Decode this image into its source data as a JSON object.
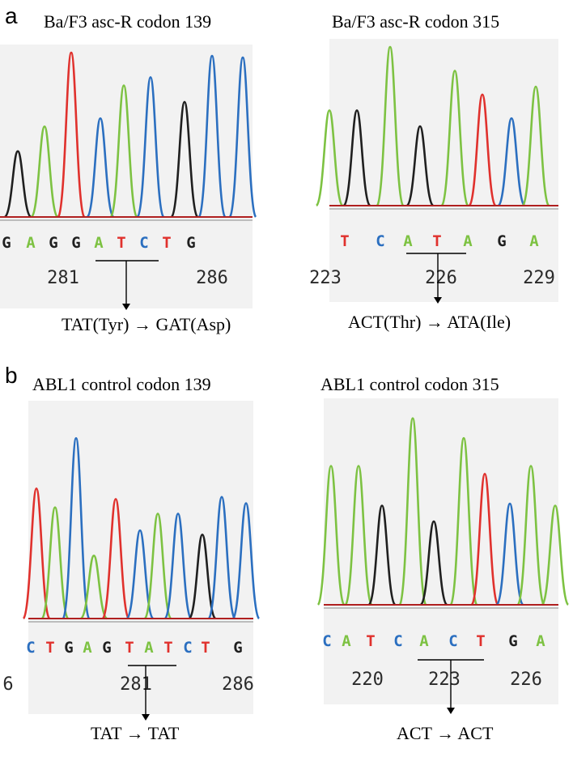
{
  "colors": {
    "A": "#7dc242",
    "C": "#2b6fc0",
    "G": "#1f1f1f",
    "T": "#e0312d",
    "baseline": "#b02020"
  },
  "panels": [
    {
      "letter": "a",
      "left": {
        "title": "Ba/F3 asc-R codon 139",
        "bases": [
          "G",
          "A",
          "G",
          "G",
          "A",
          "T",
          "C",
          "T",
          "G"
        ],
        "positions": [
          "281",
          "286"
        ],
        "mutation": {
          "from": "TAT(Tyr)",
          "arrow": "→",
          "to": "GAT(Asp)"
        }
      },
      "right": {
        "title": "Ba/F3 asc-R codon 315",
        "bases": [
          "T",
          "C",
          "A",
          "T",
          "A",
          "G",
          "A"
        ],
        "positions": [
          "223",
          "226",
          "229"
        ],
        "mutation": {
          "from": "ACT(Thr)",
          "arrow": "→",
          "to": "ATA(Ile)"
        }
      }
    },
    {
      "letter": "b",
      "left": {
        "title": "ABL1 control codon 139",
        "bases": [
          "C",
          "T",
          "G",
          "A",
          "G",
          "T",
          "A",
          "T",
          "C",
          "T",
          "G"
        ],
        "positions": [
          "6",
          "281",
          "286"
        ],
        "mutation": {
          "from": "TAT",
          "arrow": "→",
          "to": "TAT"
        }
      },
      "right": {
        "title": "ABL1 control codon 315",
        "bases": [
          "C",
          "A",
          "T",
          "C",
          "A",
          "C",
          "T",
          "G",
          "A"
        ],
        "positions": [
          "220",
          "223",
          "226"
        ],
        "mutation": {
          "from": "ACT",
          "arrow": "→",
          "to": "ACT"
        }
      }
    }
  ]
}
